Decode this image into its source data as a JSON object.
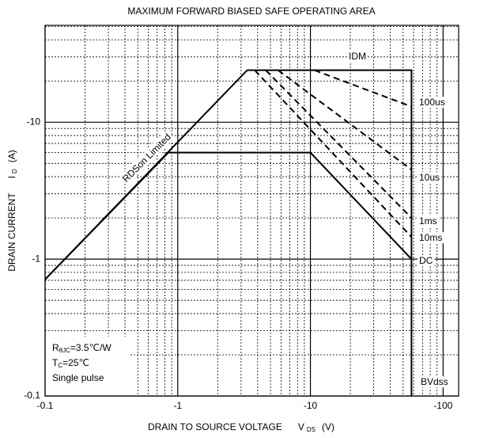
{
  "chart_data": {
    "type": "line",
    "title": "MAXIMUM FORWARD BIASED SAFE OPERATING AREA",
    "x_label": {
      "text": "DRAIN TO SOURCE VOLTAGE",
      "symbol": "V",
      "sub": "DS",
      "unit": "(V)"
    },
    "y_label": {
      "text": "DRAIN CURRENT",
      "symbol": "I",
      "sub": "D",
      "unit": "(A)"
    },
    "log_x": true,
    "log_y": true,
    "grid": true,
    "minor_grid": true,
    "xlim": [
      -0.1,
      -131
    ],
    "ylim": [
      -0.1,
      -51
    ],
    "xticks": [
      -0.1,
      -1,
      -10,
      -100
    ],
    "yticks": [
      -0.1,
      -1,
      -10
    ],
    "series": [
      {
        "color": "#000",
        "dash": false,
        "x": [
          -0.1,
          -3.34,
          -57.8,
          -57.8
        ],
        "values": [
          -0.71,
          -24,
          -24,
          -0.1
        ]
      },
      {
        "name": "DC",
        "color": "#000",
        "dash": false,
        "x": [
          -0.1,
          -0.85,
          -10,
          -57.8
        ],
        "values": [
          -0.71,
          -6.0,
          -6.0,
          -1.0
        ]
      },
      {
        "name": "100us",
        "color": "#000",
        "dash": true,
        "x": [
          -10.7,
          -57.8
        ],
        "values": [
          -24,
          -13
        ]
      },
      {
        "name": "10us",
        "color": "#000",
        "dash": true,
        "x": [
          -5.7,
          -57.8
        ],
        "values": [
          -24,
          -4.5
        ]
      },
      {
        "name": "1ms",
        "color": "#000",
        "dash": true,
        "x": [
          -4.6,
          -57.8
        ],
        "values": [
          -24,
          -2.0
        ]
      },
      {
        "name": "10ms",
        "color": "#000",
        "dash": true,
        "x": [
          -3.8,
          -57.8
        ],
        "values": [
          -24,
          -1.45
        ]
      }
    ],
    "annotations": [
      "IDM",
      "RDSon Limited",
      "BVdss"
    ],
    "conditions": [
      {
        "main": "R",
        "sub": "θJC",
        "rest": "=3.5℃/W"
      },
      {
        "main": "T",
        "sub": "C",
        "rest": "=25℃"
      },
      {
        "main": "Single pulse"
      }
    ]
  }
}
